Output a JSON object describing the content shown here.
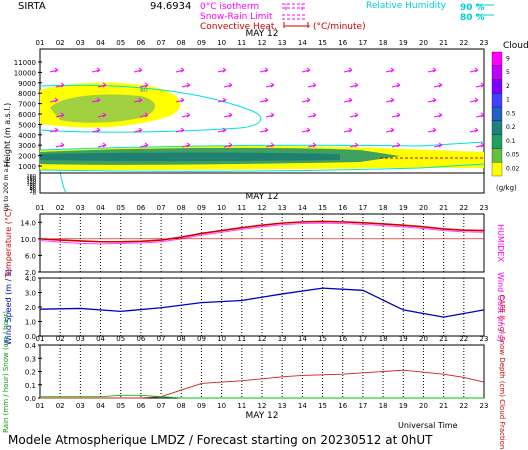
{
  "header": {
    "station": "SIRTA",
    "coords": "94.6934",
    "legend_isotherm": "0°C isotherm",
    "legend_snowrain": "Snow-Rain Limit",
    "legend_convective": "Convective Heat.",
    "legend_conv_unit": "(°C/minute)",
    "legend_rh": "Relative Humidity",
    "rh_90": "90 %",
    "rh_80": "80 %",
    "legend_color_isotherm": "#ff00ff",
    "legend_color_snowrain": "#ff00ff",
    "legend_color_convective": "#d00000",
    "legend_color_rh": "#00e0e0"
  },
  "hours": [
    "01",
    "02",
    "03",
    "04",
    "05",
    "06",
    "07",
    "08",
    "09",
    "10",
    "11",
    "12",
    "13",
    "14",
    "15",
    "16",
    "17",
    "18",
    "19",
    "20",
    "21",
    "22",
    "23"
  ],
  "date_label": "MAY 12",
  "clouds": {
    "title": "Clouds",
    "unit": "(g/kg)",
    "scale_labels": [
      "9",
      "5",
      "2",
      "1",
      "0.5",
      "0.2",
      "0.1",
      "0.05",
      "0.02"
    ],
    "scale_colors": [
      "#ff00ff",
      "#c000ff",
      "#8000ff",
      "#4040ff",
      "#2060c0",
      "#208080",
      "#20a060",
      "#60c040",
      "#ffff00"
    ]
  },
  "height_panel": {
    "ylabel": "Height (m a.s.l.)",
    "ylabel_low": "Up to 200 m a.s.l.",
    "ticks_upper": [
      "11000",
      "10000",
      "9000",
      "8000",
      "7000",
      "6000",
      "5000",
      "4000",
      "3000",
      "2000",
      "1000"
    ],
    "ticks_lower": [
      "180",
      "160",
      "140",
      "120",
      "100",
      "80",
      "60",
      "40",
      "20",
      "0"
    ],
    "rh_label": "80"
  },
  "temp_panel": {
    "ylabel": "Temperature (°C)",
    "right_label": "HUMIDEX",
    "ticks": [
      "14.0",
      "10.0",
      "6.0",
      "2.0"
    ]
  },
  "wind_panel": {
    "ylabel": "Wind Speed (m / s)",
    "right_label": "Wind Gust (m / s)",
    "ticks": [
      "4.0",
      "3.0",
      "2.0",
      "1.0",
      "0.0"
    ]
  },
  "rain_panel": {
    "ylabel": "Rain (mm / hour) Snow (cm / hour)",
    "right_label": "CAPE (J / g) Snow Depth (cm) Cloud Fraction",
    "ticks": [
      "0.4",
      "0.3",
      "0.2",
      "0.1",
      "0.0"
    ]
  },
  "footer": {
    "universal_time": "Universal Time",
    "title": "Modele Atmospherique LMDZ / Forecast starting on 20230512 at 0hUT"
  },
  "chart_data": [
    {
      "type": "line",
      "title": "Temperature",
      "x": [
        1,
        2,
        3,
        4,
        5,
        6,
        7,
        8,
        9,
        10,
        11,
        12,
        13,
        14,
        15,
        16,
        17,
        18,
        19,
        20,
        21,
        22,
        23
      ],
      "series": [
        {
          "name": "Temperature",
          "values": [
            10.0,
            9.7,
            9.5,
            9.3,
            9.3,
            9.4,
            9.7,
            10.4,
            11.3,
            12.0,
            12.7,
            13.3,
            13.8,
            14.1,
            14.2,
            14.1,
            13.9,
            13.6,
            13.3,
            12.9,
            12.4,
            12.1,
            12.0
          ]
        },
        {
          "name": "HUMIDEX",
          "values": [
            9.6,
            9.2,
            8.9,
            8.8,
            8.9,
            9.0,
            9.3,
            10.0,
            10.9,
            11.6,
            12.3,
            12.9,
            13.4,
            13.7,
            13.8,
            13.7,
            13.5,
            13.2,
            12.9,
            12.5,
            12.0,
            11.7,
            11.6
          ]
        }
      ],
      "ylim": [
        2,
        16
      ]
    },
    {
      "type": "line",
      "title": "Wind",
      "x": [
        1,
        3,
        5,
        7,
        9,
        11,
        13,
        15,
        17,
        19,
        21,
        23
      ],
      "series": [
        {
          "name": "Wind Speed",
          "values": [
            1.85,
            1.9,
            1.7,
            1.95,
            2.3,
            2.45,
            2.9,
            3.3,
            3.15,
            1.8,
            1.3,
            1.8
          ]
        }
      ],
      "ylim": [
        0,
        4
      ]
    },
    {
      "type": "line",
      "title": "Rain / CAPE",
      "x": [
        1,
        2,
        3,
        4,
        5,
        6,
        7,
        8,
        9,
        10,
        11,
        12,
        13,
        14,
        15,
        16,
        17,
        18,
        19,
        20,
        21,
        22,
        23
      ],
      "series": [
        {
          "name": "CAPE",
          "values": [
            0,
            0,
            0,
            0,
            0,
            0,
            0.01,
            0.06,
            0.11,
            0.12,
            0.13,
            0.145,
            0.16,
            0.17,
            0.175,
            0.18,
            0.19,
            0.2,
            0.21,
            0.195,
            0.18,
            0.155,
            0.12
          ]
        },
        {
          "name": "Snow Depth",
          "values": [
            0.01,
            0.01,
            0.01,
            0.01,
            0.02,
            0.02,
            0.01,
            0,
            0,
            0,
            0,
            0,
            0,
            0,
            0,
            0,
            0,
            0,
            0,
            0,
            0,
            0,
            0
          ]
        }
      ],
      "ylim": [
        0,
        0.4
      ]
    },
    {
      "type": "heatmap",
      "title": "Clouds",
      "x": [
        1,
        23
      ]
    }
  ]
}
